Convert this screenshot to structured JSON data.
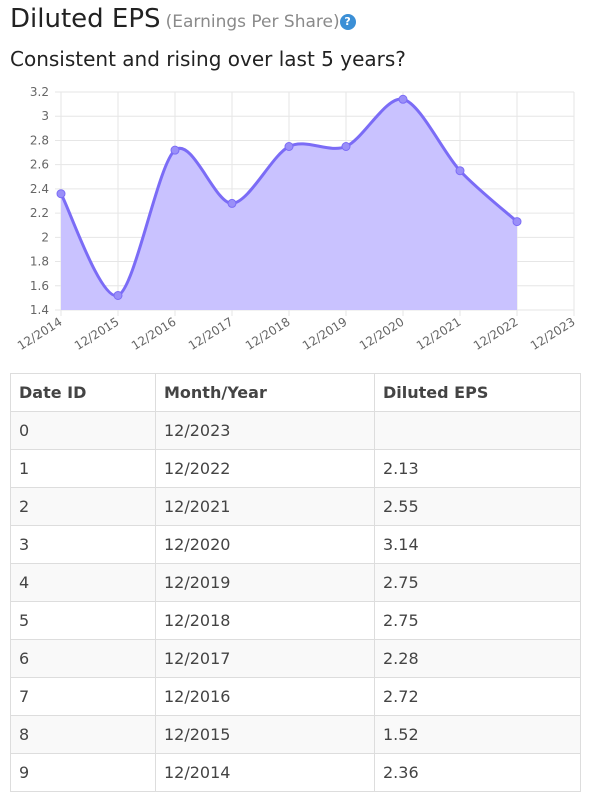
{
  "header": {
    "title": "Diluted EPS",
    "subtitle": "(Earnings Per Share)",
    "help_glyph": "?",
    "help_icon": "question-circle-icon",
    "question": "Consistent and rising over last 5 years?"
  },
  "chart_data": {
    "type": "area",
    "categories": [
      "12/2014",
      "12/2015",
      "12/2016",
      "12/2017",
      "12/2018",
      "12/2019",
      "12/2020",
      "12/2021",
      "12/2022",
      "12/2023"
    ],
    "values": [
      2.36,
      1.52,
      2.72,
      2.28,
      2.75,
      2.75,
      3.14,
      2.55,
      2.13,
      null
    ],
    "y_ticks": [
      "1.4",
      "1.6",
      "1.8",
      "2",
      "2.2",
      "2.4",
      "2.6",
      "2.8",
      "3",
      "3.2"
    ],
    "ylim": [
      1.4,
      3.2
    ],
    "grid": true,
    "line_color": "#7b6cf6",
    "fill_color": "#c9c2ff",
    "point_color": "#9a8ff8"
  },
  "table": {
    "headers": [
      "Date ID",
      "Month/Year",
      "Diluted EPS"
    ],
    "rows": [
      [
        "0",
        "12/2023",
        ""
      ],
      [
        "1",
        "12/2022",
        "2.13"
      ],
      [
        "2",
        "12/2021",
        "2.55"
      ],
      [
        "3",
        "12/2020",
        "3.14"
      ],
      [
        "4",
        "12/2019",
        "2.75"
      ],
      [
        "5",
        "12/2018",
        "2.75"
      ],
      [
        "6",
        "12/2017",
        "2.28"
      ],
      [
        "7",
        "12/2016",
        "2.72"
      ],
      [
        "8",
        "12/2015",
        "1.52"
      ],
      [
        "9",
        "12/2014",
        "2.36"
      ]
    ]
  }
}
